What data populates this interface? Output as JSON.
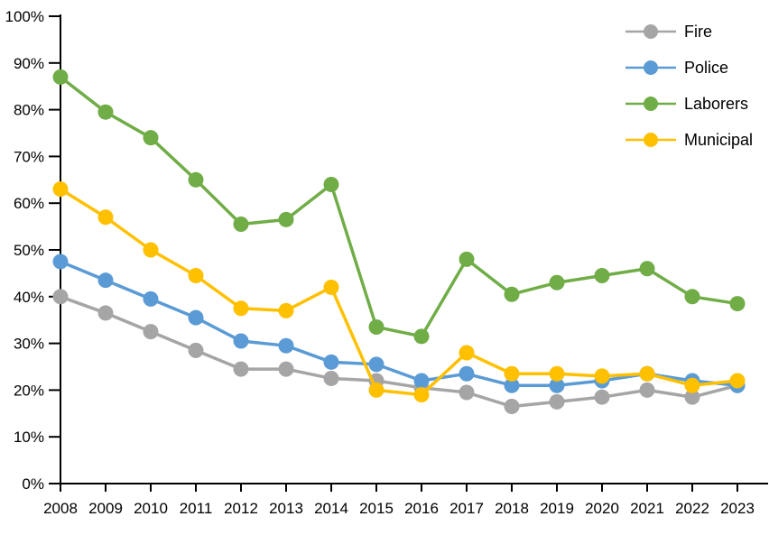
{
  "chart_data": {
    "type": "line",
    "title": "",
    "xlabel": "",
    "ylabel": "",
    "categories": [
      "2008",
      "2009",
      "2010",
      "2011",
      "2012",
      "2013",
      "2014",
      "2015",
      "2016",
      "2017",
      "2018",
      "2019",
      "2020",
      "2021",
      "2022",
      "2023"
    ],
    "series": [
      {
        "name": "Fire",
        "color": "#A5A5A5",
        "values": [
          40,
          36.5,
          32.5,
          28.5,
          24.5,
          24.5,
          22.5,
          22,
          20.5,
          19.5,
          16.5,
          17.5,
          18.5,
          20,
          18.5,
          21
        ]
      },
      {
        "name": "Police",
        "color": "#5B9BD5",
        "values": [
          47.5,
          43.5,
          39.5,
          35.5,
          30.5,
          29.5,
          26,
          25.5,
          22,
          23.5,
          21,
          21,
          22,
          23.5,
          22,
          21
        ]
      },
      {
        "name": "Laborers",
        "color": "#70AD47",
        "values": [
          87,
          79.5,
          74,
          65,
          55.5,
          56.5,
          64,
          33.5,
          31.5,
          48,
          40.5,
          43,
          44.5,
          46,
          40,
          38.5
        ]
      },
      {
        "name": "Municipal",
        "color": "#FFC000",
        "values": [
          63,
          57,
          50,
          44.5,
          37.5,
          37,
          42,
          20,
          19,
          28,
          23.5,
          23.5,
          23,
          23.5,
          21,
          22
        ]
      }
    ],
    "ylim": [
      0,
      100
    ],
    "y_tick_step": 10,
    "y_tick_labels": [
      "0%",
      "10%",
      "20%",
      "30%",
      "40%",
      "50%",
      "60%",
      "70%",
      "80%",
      "90%",
      "100%"
    ],
    "grid": false,
    "legend_position": "top-right",
    "axis_color": "#000000",
    "background_color": "#FFFFFF"
  }
}
